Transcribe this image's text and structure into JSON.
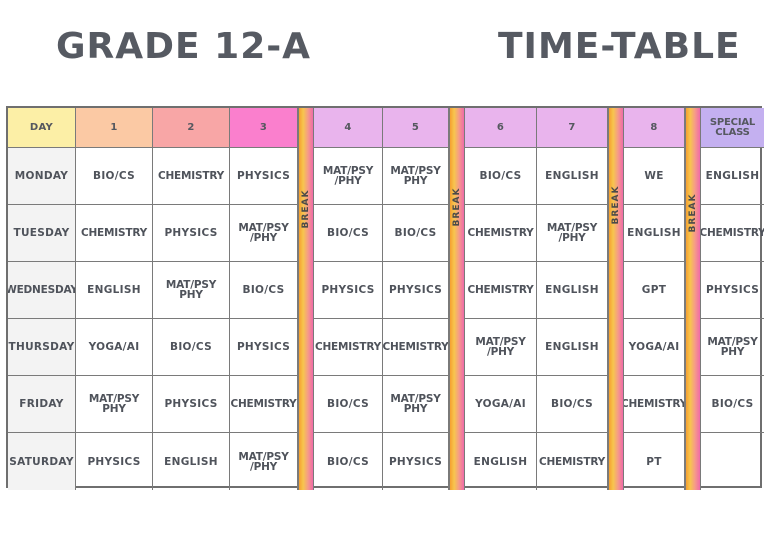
{
  "title_left": "GRADE 12-A",
  "title_right": "TIME-TABLE",
  "headers": [
    "DAY",
    "1",
    "2",
    "3",
    "4",
    "5",
    "6",
    "7",
    "8",
    "SPECIAL\nCLASS"
  ],
  "header_colors": [
    "#fcefa6",
    "#fbc9a4",
    "#f8a6a6",
    "#fa7fcd",
    "#e9b4ed",
    "#e9b4ed",
    "#e9b4ed",
    "#e9b4ed",
    "#e9b4ed",
    "#c4b0f0"
  ],
  "break_label": "BREAK",
  "break_colors": [
    "#f5a030",
    "#f7c54e",
    "#f59a8a",
    "#f06aa8"
  ],
  "rows": [
    {
      "day": "MONDAY",
      "cells": [
        "BIO/CS",
        "CHEMISTRY",
        "PHYSICS",
        "MAT/PSY\n/PHY",
        "MAT/PSY\nPHY",
        "BIO/CS",
        "ENGLISH",
        "WE",
        "ENGLISH"
      ]
    },
    {
      "day": "TUESDAY",
      "cells": [
        "CHEMISTRY",
        "PHYSICS",
        "MAT/PSY\n/PHY",
        "BIO/CS",
        "BIO/CS",
        "CHEMISTRY",
        "MAT/PSY\n/PHY",
        "ENGLISH",
        "CHEMISTRY"
      ]
    },
    {
      "day": "WEDNESDAY",
      "cells": [
        "ENGLISH",
        "MAT/PSY\nPHY",
        "BIO/CS",
        "PHYSICS",
        "PHYSICS",
        "CHEMISTRY",
        "ENGLISH",
        "GPT",
        "PHYSICS"
      ]
    },
    {
      "day": "THURSDAY",
      "cells": [
        "YOGA/AI",
        "BIO/CS",
        "PHYSICS",
        "CHEMISTRY",
        "CHEMISTRY",
        "MAT/PSY\n/PHY",
        "ENGLISH",
        "YOGA/AI",
        "MAT/PSY\nPHY"
      ]
    },
    {
      "day": "FRIDAY",
      "cells": [
        "MAT/PSY\nPHY",
        "PHYSICS",
        "CHEMISTRY",
        "BIO/CS",
        "MAT/PSY\nPHY",
        "YOGA/AI",
        "BIO/CS",
        "CHEMISTRY",
        "BIO/CS"
      ]
    },
    {
      "day": "SATURDAY",
      "cells": [
        "PHYSICS",
        "ENGLISH",
        "MAT/PSY\n/PHY",
        "BIO/CS",
        "PHYSICS",
        "ENGLISH",
        "CHEMISTRY",
        "PT",
        ""
      ]
    }
  ]
}
